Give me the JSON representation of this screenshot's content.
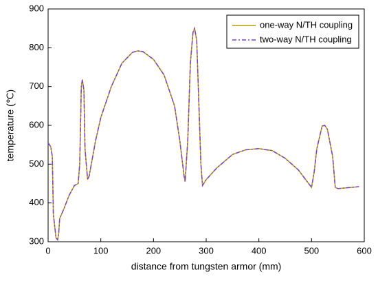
{
  "chart_data": {
    "type": "line",
    "xlabel": "distance from tungsten armor (mm)",
    "ylabel": "temperature (℃)",
    "x": [
      0,
      5,
      8,
      10,
      15,
      18,
      20,
      22,
      30,
      40,
      50,
      57,
      60,
      63,
      65,
      68,
      70,
      75,
      78,
      90,
      100,
      120,
      140,
      160,
      170,
      180,
      200,
      220,
      240,
      250,
      258,
      260,
      265,
      270,
      275,
      278,
      282,
      285,
      290,
      293,
      300,
      320,
      350,
      375,
      400,
      425,
      450,
      475,
      500,
      505,
      510,
      520,
      525,
      530,
      540,
      545,
      550,
      575,
      590
    ],
    "series": [
      {
        "name": "one-way N/TH coupling",
        "color": "#b59c00",
        "linestyle": "solid",
        "values": [
          555,
          545,
          520,
          370,
          310,
          305,
          320,
          360,
          385,
          420,
          445,
          450,
          500,
          700,
          718,
          690,
          540,
          460,
          470,
          560,
          620,
          700,
          760,
          788,
          792,
          790,
          770,
          730,
          650,
          560,
          470,
          455,
          560,
          760,
          840,
          850,
          820,
          700,
          500,
          445,
          460,
          490,
          525,
          537,
          540,
          535,
          515,
          485,
          440,
          480,
          540,
          598,
          600,
          590,
          520,
          440,
          437,
          440,
          442
        ]
      },
      {
        "name": "two-way N/TH coupling",
        "color": "#7a3fd0",
        "linestyle": "dashdot",
        "values": [
          555,
          545,
          520,
          370,
          310,
          305,
          320,
          360,
          385,
          420,
          445,
          450,
          500,
          700,
          718,
          690,
          540,
          460,
          470,
          560,
          620,
          700,
          760,
          788,
          792,
          790,
          770,
          730,
          650,
          560,
          470,
          455,
          560,
          760,
          840,
          850,
          820,
          700,
          500,
          445,
          460,
          490,
          525,
          537,
          540,
          535,
          515,
          485,
          440,
          480,
          540,
          598,
          600,
          590,
          520,
          440,
          437,
          440,
          442
        ]
      }
    ],
    "xlim": [
      0,
      600
    ],
    "xticks": [
      0,
      100,
      200,
      300,
      400,
      500,
      600
    ],
    "ylim": [
      300,
      900
    ],
    "yticks": [
      300,
      400,
      500,
      600,
      700,
      800,
      900
    ],
    "legend": "upper right",
    "grid": false
  }
}
